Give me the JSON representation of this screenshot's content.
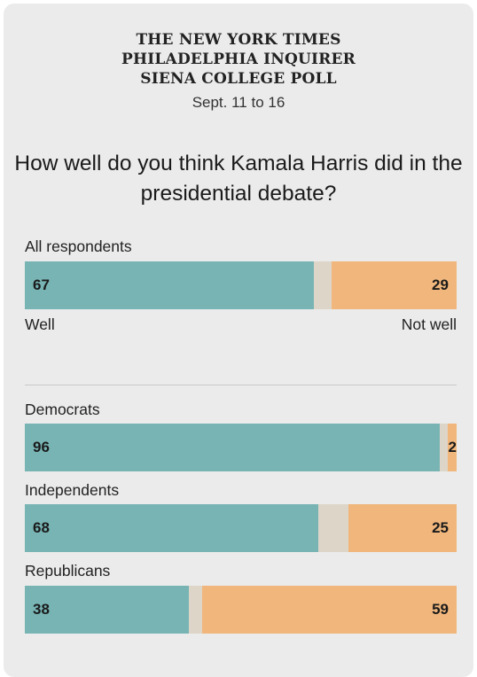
{
  "header": {
    "source_lines": [
      "THE NEW YORK TIMES",
      "PHILADELPHIA INQUIRER",
      "SIENA COLLEGE POLL"
    ],
    "dates": "Sept. 11 to 16"
  },
  "chart_data": {
    "type": "bar",
    "stacked": true,
    "orientation": "horizontal",
    "title": "How well do you think Kamala Harris did in the presidential debate?",
    "end_labels": {
      "left": "Well",
      "right": "Not well"
    },
    "colors": {
      "well": "#78b4b4",
      "other": "#ddd6c8",
      "not_well": "#f0b67c"
    },
    "categories": [
      "All respondents",
      "Democrats",
      "Independents",
      "Republicans"
    ],
    "series": [
      {
        "name": "Well",
        "values": [
          67,
          96,
          68,
          38
        ]
      },
      {
        "name": "Not well",
        "values": [
          29,
          2,
          25,
          59
        ]
      }
    ],
    "xlim": [
      0,
      100
    ],
    "grid": false,
    "legend": "none"
  }
}
